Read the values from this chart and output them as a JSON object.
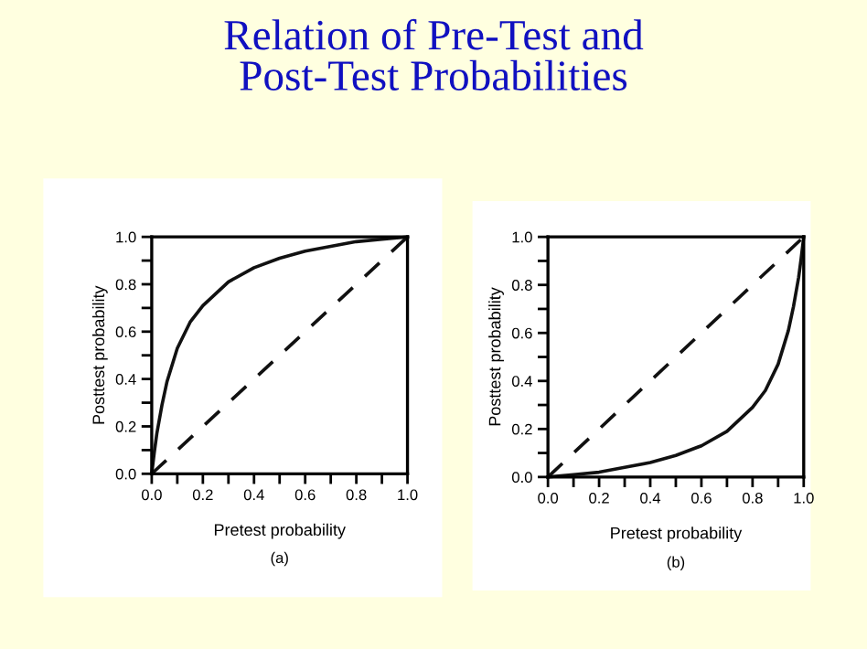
{
  "chart_data": [
    {
      "type": "line",
      "title": "Relation of Pre-Test and\nPost-Test Probabilities",
      "xlabel": "Pretest probability",
      "ylabel": "Posttest probability",
      "annotations": [
        "(a)"
      ],
      "series": [
        {
          "color": "#111111",
          "line_style": "solid",
          "x": [
            0,
            0.01,
            0.02,
            0.04,
            0.06,
            0.1,
            0.15,
            0.2,
            0.3,
            0.4,
            0.5,
            0.6,
            0.7,
            0.8,
            0.9,
            1.0
          ],
          "values": [
            0,
            0.09,
            0.17,
            0.29,
            0.39,
            0.53,
            0.64,
            0.71,
            0.81,
            0.87,
            0.91,
            0.94,
            0.96,
            0.98,
            0.99,
            1.0
          ]
        },
        {
          "color": "#111111",
          "line_style": "dashed",
          "x": [
            0,
            1
          ],
          "values": [
            0,
            1
          ]
        }
      ],
      "xlim": [
        0,
        1
      ],
      "ylim": [
        0,
        1
      ],
      "xticks": [
        {
          "value": 0,
          "label": "0.0"
        },
        {
          "value": 0.1,
          "label": null
        },
        0.2,
        {
          "value": 0.3,
          "label": null
        },
        0.4,
        {
          "value": 0.5,
          "label": null
        },
        0.6,
        {
          "value": 0.7,
          "label": null
        },
        0.8,
        {
          "value": 0.9,
          "label": null
        },
        {
          "value": 1,
          "label": "1.0"
        }
      ],
      "yticks": [
        {
          "value": 0,
          "label": "0.0"
        },
        {
          "value": 0.1,
          "label": null
        },
        0.2,
        {
          "value": 0.3,
          "label": null
        },
        0.4,
        {
          "value": 0.5,
          "label": null
        },
        0.6,
        {
          "value": 0.7,
          "label": null
        },
        0.8,
        {
          "value": 0.9,
          "label": null
        },
        {
          "value": 1,
          "label": "1.0"
        }
      ],
      "grid": false
    },
    {
      "type": "line",
      "xlabel": "Pretest probability",
      "ylabel": "Posttest probability",
      "annotations": [
        "(b)"
      ],
      "series": [
        {
          "color": "#111111",
          "line_style": "solid",
          "x": [
            0,
            0.1,
            0.2,
            0.3,
            0.4,
            0.5,
            0.6,
            0.7,
            0.8,
            0.85,
            0.9,
            0.94,
            0.96,
            0.98,
            0.99,
            1.0
          ],
          "values": [
            0,
            0.01,
            0.02,
            0.04,
            0.06,
            0.09,
            0.13,
            0.19,
            0.29,
            0.36,
            0.47,
            0.61,
            0.71,
            0.83,
            0.91,
            1.0
          ]
        },
        {
          "color": "#111111",
          "line_style": "dashed",
          "x": [
            0,
            1
          ],
          "values": [
            0,
            1
          ]
        }
      ],
      "xlim": [
        0,
        1
      ],
      "ylim": [
        0,
        1
      ],
      "xticks": [
        {
          "value": 0,
          "label": "0.0"
        },
        {
          "value": 0.1,
          "label": null
        },
        0.2,
        {
          "value": 0.3,
          "label": null
        },
        0.4,
        {
          "value": 0.5,
          "label": null
        },
        0.6,
        {
          "value": 0.7,
          "label": null
        },
        0.8,
        {
          "value": 0.9,
          "label": null
        },
        {
          "value": 1,
          "label": "1.0"
        }
      ],
      "yticks": [
        {
          "value": 0,
          "label": "0.0"
        },
        {
          "value": 0.1,
          "label": null
        },
        0.2,
        {
          "value": 0.3,
          "label": null
        },
        0.4,
        {
          "value": 0.5,
          "label": null
        },
        0.6,
        {
          "value": 0.7,
          "label": null
        },
        0.8,
        {
          "value": 0.9,
          "label": null
        },
        {
          "value": 1,
          "label": "1.0"
        }
      ],
      "grid": false
    }
  ]
}
